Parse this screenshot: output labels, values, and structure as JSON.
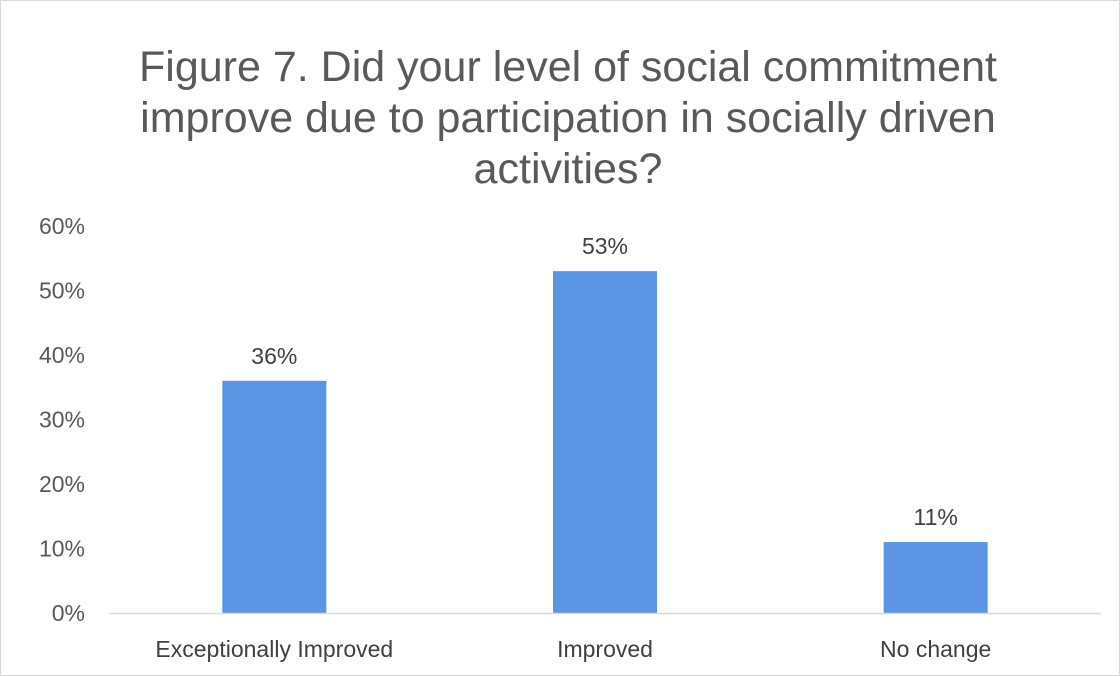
{
  "chart_data": {
    "type": "bar",
    "title": "Figure 7. Did your level of social commitment improve due to participation in socially driven activities?",
    "title_lines": [
      "Figure 7. Did your level of social commitment",
      "improve due to participation in socially driven",
      "activities?"
    ],
    "categories": [
      "Exceptionally Improved",
      "Improved",
      "No change"
    ],
    "values": [
      36,
      53,
      11
    ],
    "data_labels": [
      "36%",
      "53%",
      "11%"
    ],
    "ylim": [
      0,
      60
    ],
    "y_ticks": [
      0,
      10,
      20,
      30,
      40,
      50,
      60
    ],
    "y_tick_labels": [
      "0%",
      "10%",
      "20%",
      "30%",
      "40%",
      "50%",
      "60%"
    ],
    "xlabel": "",
    "ylabel": "",
    "grid": false,
    "legend": "none",
    "bar_color": "#5b95e5",
    "axis_color": "#d9d9d9"
  }
}
